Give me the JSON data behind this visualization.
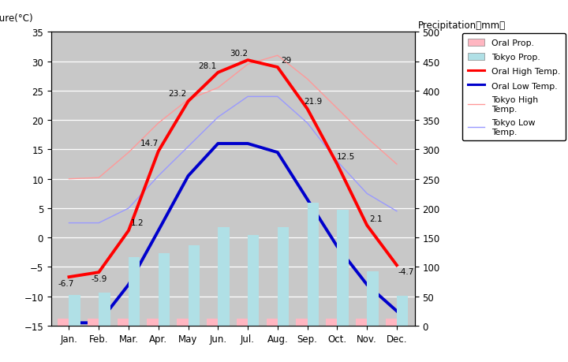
{
  "months": [
    "Jan.",
    "Feb.",
    "Mar.",
    "Apr.",
    "May",
    "Jun.",
    "Jul.",
    "Aug.",
    "Sep.",
    "Oct.",
    "Nov.",
    "Dec."
  ],
  "oral_high_temp": [
    -6.7,
    -5.9,
    1.2,
    14.7,
    23.2,
    28.1,
    30.2,
    29.0,
    21.9,
    12.5,
    2.1,
    -4.7
  ],
  "oral_low_temp": [
    -14.5,
    -14.5,
    -8.0,
    1.2,
    10.5,
    16.0,
    16.0,
    14.5,
    6.5,
    -1.5,
    -8.0,
    -12.5
  ],
  "tokyo_high_temp": [
    10.0,
    10.2,
    14.5,
    19.5,
    23.5,
    25.5,
    29.5,
    31.0,
    27.0,
    22.0,
    17.0,
    12.5
  ],
  "tokyo_low_temp": [
    2.5,
    2.5,
    5.0,
    10.5,
    15.5,
    20.5,
    24.0,
    24.0,
    19.5,
    13.0,
    7.5,
    4.5
  ],
  "oral_precip": [
    12,
    12,
    12,
    12,
    12,
    12,
    12,
    12,
    12,
    12,
    12,
    12
  ],
  "tokyo_precip": [
    52,
    56,
    117,
    124,
    137,
    168,
    154,
    168,
    210,
    197,
    93,
    51
  ],
  "temp_ylim": [
    -15,
    35
  ],
  "precip_ylim": [
    0,
    500
  ],
  "bg_color": "#c8c8c8",
  "oral_high_color": "#ff0000",
  "oral_low_color": "#0000cc",
  "tokyo_high_color": "#ff9999",
  "tokyo_low_color": "#9999ff",
  "oral_precip_color": "#ffb6c1",
  "tokyo_precip_color": "#b0e0e6",
  "label_precip_right": "Precipitation（mm）",
  "legend_labels": [
    "Oral Prop.",
    "Tokyo Prop.",
    "Oral High Temp.",
    "Oral Low Temp.",
    "Tokyo High\nTemp.",
    "Tokyo Low\nTemp."
  ],
  "annot_high": [
    "-6.7",
    "-5.9",
    "1.2",
    "14.7",
    "23.2",
    "28.1",
    "30.2",
    "29",
    "21.9",
    "12.5",
    "2.1",
    "-4.7"
  ],
  "annot_high_show": [
    true,
    true,
    true,
    true,
    true,
    true,
    true,
    true,
    true,
    true,
    true,
    true
  ]
}
